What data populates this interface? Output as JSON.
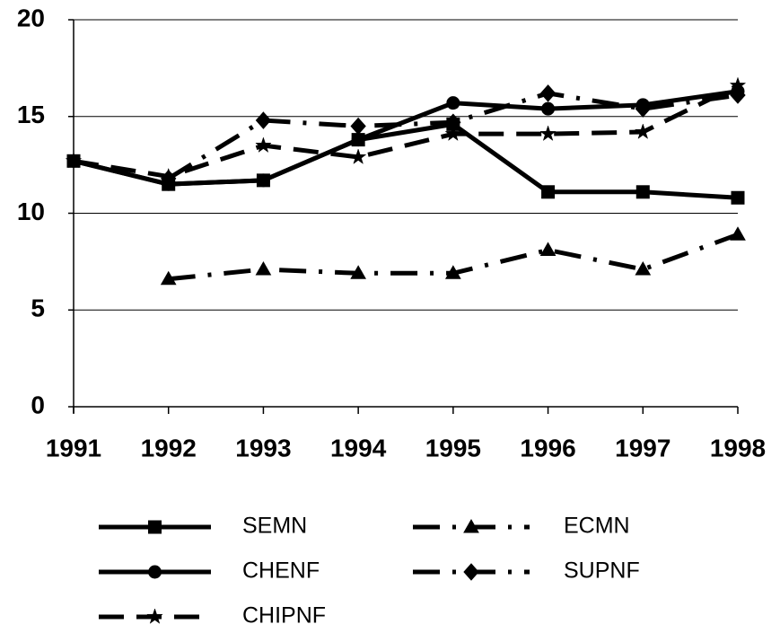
{
  "chart_data": {
    "type": "line",
    "x": [
      1991,
      1992,
      1993,
      1994,
      1995,
      1996,
      1997,
      1998
    ],
    "xlim": [
      1991,
      1998
    ],
    "xticks": [
      1991,
      1992,
      1993,
      1994,
      1995,
      1996,
      1997,
      1998
    ],
    "ylim": [
      0,
      20
    ],
    "yticks": [
      0,
      5,
      10,
      15,
      20
    ],
    "grid": true,
    "series": [
      {
        "name": "SEMN",
        "color": "#000000",
        "marker": "square",
        "dash": "solid",
        "values": [
          12.7,
          11.5,
          11.7,
          13.8,
          14.6,
          11.1,
          11.1,
          10.8
        ]
      },
      {
        "name": "ECMN",
        "color": "#000000",
        "marker": "triangle",
        "dash": "dashdot",
        "values": [
          null,
          6.6,
          7.1,
          6.9,
          6.9,
          8.1,
          7.1,
          8.9
        ]
      },
      {
        "name": "CHENF",
        "color": "#000000",
        "marker": "circle",
        "dash": "solid",
        "values": [
          12.7,
          11.5,
          11.7,
          13.8,
          15.7,
          15.4,
          15.6,
          16.3
        ]
      },
      {
        "name": "SUPNF",
        "color": "#000000",
        "marker": "diamond",
        "dash": "dashdot",
        "values": [
          null,
          11.8,
          14.8,
          14.5,
          14.7,
          16.2,
          15.4,
          16.1
        ]
      },
      {
        "name": "CHIPNF",
        "color": "#000000",
        "marker": "star",
        "dash": "dashed",
        "values": [
          12.7,
          11.9,
          13.5,
          12.9,
          14.1,
          14.1,
          14.2,
          16.6
        ]
      }
    ]
  }
}
